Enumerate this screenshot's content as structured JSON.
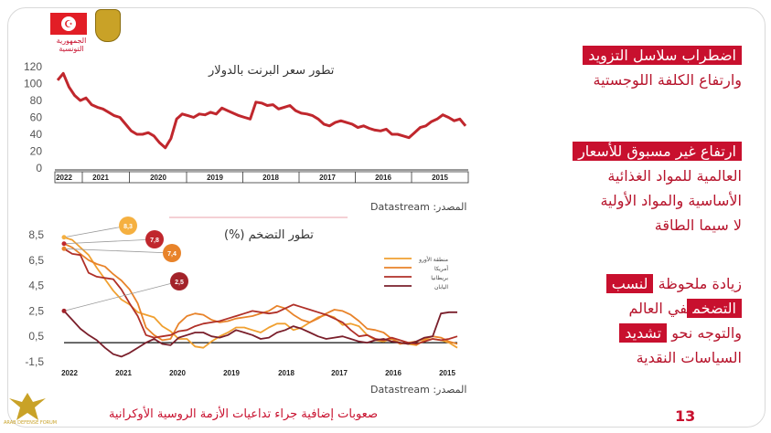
{
  "logo": {
    "caption": "الجمهورية التونسية",
    "flag_symbol": "☪"
  },
  "right_panel": {
    "block1": {
      "line1": "اضطراب سلاسل التزويد",
      "line2": "وارتفاع الكلفة اللوجستية"
    },
    "block2": {
      "line1": "ارتفاع غير مسبوق للأسعار",
      "line2": "العالمية للمواد الغذائية",
      "line3": "الأساسية والمواد الأولية",
      "line4": "لا سيما الطاقة"
    },
    "block3": {
      "w1": "زيادة ملحوظة",
      "w2": "لنسب",
      "w3": "التضخم",
      "w4": "في العالم",
      "w5": "والتوجه نحو",
      "w6": "تشديد",
      "w7": "السياسات النقدية"
    }
  },
  "footer": {
    "text": "صعوبات إضافية جراء تداعيات الأزمة الروسية الأوكرانية",
    "page": "13"
  },
  "badge": {
    "text": "ARAB DEFENSE FORUM"
  },
  "chart_data": [
    {
      "type": "line",
      "title": "تطور سعر البرنت بالدولار",
      "source": "المصدر: Datastream",
      "ylim": [
        0,
        120
      ],
      "yticks": [
        "0",
        "20",
        "40",
        "60",
        "80",
        "100",
        "120"
      ],
      "xticks": [
        "2022",
        "2021",
        "2020",
        "2019",
        "2018",
        "2017",
        "2016",
        "2015"
      ],
      "grid": false,
      "color": "#c0272d",
      "values": [
        104,
        112,
        96,
        86,
        80,
        83,
        75,
        72,
        70,
        66,
        62,
        60,
        52,
        44,
        40,
        40,
        42,
        38,
        30,
        24,
        35,
        58,
        64,
        62,
        60,
        64,
        63,
        66,
        64,
        71,
        68,
        65,
        62,
        60,
        58,
        78,
        77,
        74,
        75,
        70,
        72,
        74,
        68,
        65,
        64,
        62,
        58,
        52,
        50,
        54,
        56,
        54,
        52,
        48,
        50,
        47,
        45,
        44,
        46,
        40,
        40,
        38,
        36,
        42,
        48,
        50,
        55,
        58,
        63,
        60,
        56,
        58,
        50
      ]
    },
    {
      "type": "line",
      "title": "تطور التضخم (%)",
      "source": "المصدر: Datastream",
      "ylim": [
        -1.5,
        8.5
      ],
      "yticks": [
        "8,5",
        "6,5",
        "4,5",
        "2,5",
        "0,5",
        "-1,5"
      ],
      "xticks": [
        "2022",
        "2021",
        "2020",
        "2019",
        "2018",
        "2017",
        "2016",
        "2015"
      ],
      "legend": [
        "منطقة الأورو",
        "أمريكا",
        "بريطانيا",
        "اليابان"
      ],
      "callouts": [
        "8,3",
        "7,8",
        "7,4",
        "2,5"
      ],
      "series": [
        {
          "name": "منطقة الأورو",
          "color": "#f0a030",
          "values": [
            8.3,
            8.1,
            7.5,
            6.9,
            5.9,
            5.0,
            4.1,
            3.4,
            3.0,
            2.4,
            2.2,
            2.0,
            1.3,
            0.9,
            0.3,
            0.3,
            -0.3,
            -0.4,
            0.1,
            0.5,
            0.8,
            1.2,
            1.2,
            1.0,
            0.8,
            1.2,
            1.5,
            1.5,
            1.0,
            1.2,
            1.6,
            2.0,
            2.2,
            2.0,
            1.4,
            1.5,
            1.3,
            0.6,
            0.2,
            0.1,
            0.3,
            0.0,
            -0.1,
            -0.2,
            0.2,
            0.3,
            0.2,
            0.0,
            -0.4
          ]
        },
        {
          "name": "أمريكا",
          "color": "#e8832a",
          "values": [
            7.8,
            7.5,
            7.0,
            6.5,
            6.2,
            6.0,
            5.4,
            4.9,
            4.2,
            3.1,
            1.2,
            0.6,
            0.2,
            0.3,
            1.5,
            2.1,
            2.3,
            2.2,
            1.8,
            1.6,
            1.7,
            1.9,
            2.0,
            2.1,
            2.3,
            2.5,
            2.9,
            2.7,
            2.2,
            1.8,
            1.6,
            1.9,
            2.3,
            2.6,
            2.5,
            2.2,
            1.7,
            1.1,
            1.0,
            0.8,
            0.3,
            -0.1,
            0.0,
            0.1,
            0.3,
            0.5,
            0.4,
            0.1,
            -0.1
          ]
        },
        {
          "name": "بريطانيا",
          "color": "#b03028",
          "values": [
            7.4,
            7.0,
            6.9,
            5.5,
            5.2,
            5.1,
            5.0,
            4.2,
            3.1,
            2.1,
            0.6,
            0.4,
            0.5,
            0.6,
            0.9,
            1.0,
            1.3,
            1.5,
            1.6,
            1.7,
            1.9,
            2.1,
            2.3,
            2.5,
            2.4,
            2.3,
            2.4,
            2.7,
            3.0,
            2.8,
            2.6,
            2.4,
            2.2,
            1.9,
            1.6,
            1.0,
            0.5,
            0.6,
            0.3,
            0.2,
            0.4,
            0.2,
            0.0,
            -0.1,
            0.1,
            0.3,
            0.2,
            0.3,
            0.5
          ]
        },
        {
          "name": "اليابان",
          "color": "#7a1f2b",
          "values": [
            2.5,
            1.8,
            1.1,
            0.6,
            0.2,
            -0.4,
            -0.9,
            -1.1,
            -0.8,
            -0.4,
            0.0,
            0.3,
            -0.1,
            -0.2,
            0.4,
            0.6,
            0.8,
            0.8,
            0.5,
            0.4,
            0.6,
            1.0,
            0.8,
            0.6,
            0.3,
            0.4,
            0.8,
            1.0,
            1.3,
            1.1,
            0.8,
            0.5,
            0.3,
            0.4,
            0.5,
            0.3,
            0.1,
            0.0,
            0.2,
            0.3,
            0.1,
            0.0,
            -0.1,
            0.1,
            0.4,
            0.5,
            2.3,
            2.4,
            2.4
          ]
        }
      ]
    }
  ]
}
